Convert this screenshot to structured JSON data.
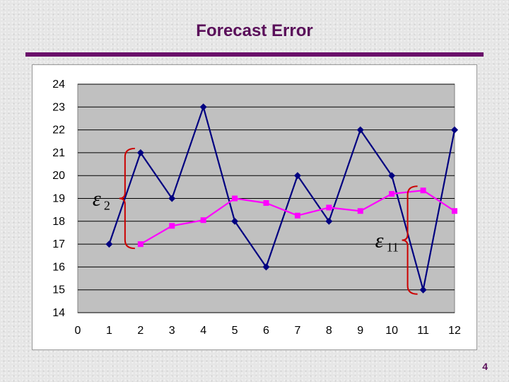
{
  "slide": {
    "title": "Forecast Error",
    "page_number": "4"
  },
  "chart_data": {
    "type": "line",
    "x": [
      1,
      2,
      3,
      4,
      5,
      6,
      7,
      8,
      9,
      10,
      11,
      12
    ],
    "series": [
      {
        "values": [
          17,
          21,
          19,
          23,
          18,
          16,
          20,
          18,
          22,
          20,
          15,
          22
        ],
        "color": "#000080",
        "marker": "diamond"
      },
      {
        "values": [
          null,
          17,
          17.8,
          18.05,
          19,
          18.8,
          18.25,
          18.6,
          18.45,
          19.2,
          19.35,
          18.45
        ],
        "color": "#ff00ff",
        "marker": "square"
      }
    ],
    "xlim": [
      0,
      12
    ],
    "ylim": [
      14,
      24
    ],
    "x_ticks": [
      0,
      1,
      2,
      3,
      4,
      5,
      6,
      7,
      8,
      9,
      10,
      11,
      12
    ],
    "y_ticks": [
      14,
      15,
      16,
      17,
      18,
      19,
      20,
      21,
      22,
      23,
      24
    ],
    "grid": "horizontal",
    "plot_background": "#c0c0c0",
    "annotations": [
      {
        "symbol": "ε",
        "subscript": "2",
        "x": 2,
        "from": 17,
        "to": 21,
        "brace_color": "#cc0000"
      },
      {
        "symbol": "ε",
        "subscript": "11",
        "x": 11,
        "from": 15,
        "to": 19.35,
        "brace_color": "#cc0000"
      }
    ]
  }
}
